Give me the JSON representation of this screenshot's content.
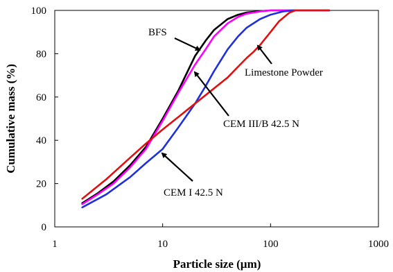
{
  "chart_data": {
    "type": "line",
    "xscale": "log",
    "xlim": [
      1,
      1000
    ],
    "ylim": [
      0,
      100
    ],
    "xlabel": "Particle size (µm)",
    "ylabel": "Cumulative mass (%)",
    "xticks": [
      "1",
      "10",
      "100",
      "1000"
    ],
    "yticks": [
      "0",
      "20",
      "40",
      "60",
      "80",
      "100"
    ],
    "grid": false,
    "series": [
      {
        "name": "BFS",
        "color": "#000000",
        "x": [
          1.8,
          2.5,
          3.5,
          5,
          7,
          10,
          14,
          20,
          25,
          30,
          40,
          50,
          60,
          80,
          100,
          150,
          200,
          350
        ],
        "y": [
          11,
          15.5,
          21,
          28.5,
          37,
          50,
          63,
          79,
          86,
          91,
          96,
          98,
          99,
          99.6,
          100,
          100,
          100,
          100
        ]
      },
      {
        "name": "CEM III/B 42.5 N",
        "color": "#ff00ff",
        "x": [
          1.8,
          2.5,
          3.5,
          5,
          7,
          10,
          14,
          20,
          25,
          30,
          40,
          50,
          60,
          80,
          100,
          150,
          200,
          350
        ],
        "y": [
          10.5,
          15,
          20,
          27.5,
          36,
          49,
          62,
          75,
          82,
          88,
          94,
          97,
          98.5,
          99.5,
          100,
          100,
          100,
          100
        ]
      },
      {
        "name": "CEM I 42.5 N",
        "color": "#1f2fdc",
        "x": [
          1.8,
          3,
          5,
          7,
          10,
          14,
          20,
          25,
          30,
          40,
          50,
          60,
          80,
          100,
          130,
          160,
          200,
          350
        ],
        "y": [
          9,
          15,
          23,
          29.5,
          36,
          46,
          57,
          65,
          72,
          82,
          88,
          92,
          96,
          98,
          99.5,
          100,
          100,
          100
        ]
      },
      {
        "name": "Limestone Powder",
        "color": "#e01010",
        "x": [
          1.8,
          3,
          5,
          7,
          10,
          15,
          20,
          30,
          40,
          50,
          60,
          70,
          80,
          100,
          120,
          150,
          170,
          200,
          350
        ],
        "y": [
          13,
          22,
          32,
          38.5,
          45,
          52,
          57,
          64,
          69,
          74,
          78,
          81,
          84,
          90,
          95,
          99,
          100,
          100,
          100
        ]
      }
    ],
    "annotations": [
      {
        "text": "BFS",
        "series": "BFS"
      },
      {
        "text": "Limestone Powder",
        "series": "Limestone Powder"
      },
      {
        "text": "CEM III/B 42.5 N",
        "series": "CEM III/B 42.5 N"
      },
      {
        "text": "CEM I 42.5 N",
        "series": "CEM I 42.5 N"
      }
    ]
  }
}
